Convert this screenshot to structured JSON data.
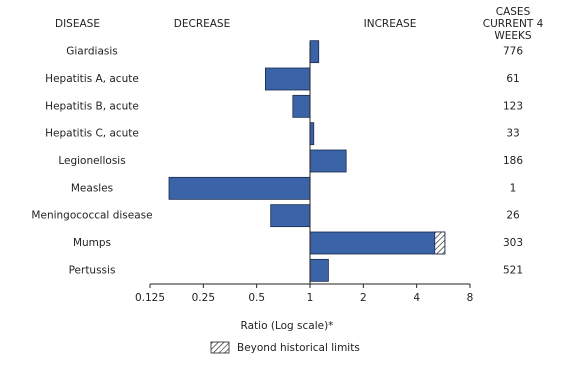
{
  "chart_data": {
    "type": "bar",
    "orientation": "horizontal",
    "headers": {
      "disease": "DISEASE",
      "decrease": "DECREASE",
      "increase": "INCREASE",
      "cases": "CASES CURRENT 4 WEEKS"
    },
    "categories": [
      "Giardiasis",
      "Hepatitis A, acute",
      "Hepatitis B, acute",
      "Hepatitis C, acute",
      "Legionellosis",
      "Measles",
      "Meningococcal disease",
      "Mumps",
      "Pertussis"
    ],
    "values": [
      1.12,
      0.56,
      0.8,
      1.05,
      1.6,
      0.16,
      0.6,
      5.77,
      1.27
    ],
    "historical_limits": [
      null,
      null,
      null,
      null,
      null,
      null,
      null,
      5.06,
      null
    ],
    "cases": [
      776,
      61,
      123,
      33,
      186,
      1,
      26,
      303,
      521
    ],
    "color": "#3b64a8",
    "log_scale": true,
    "xlim": [
      0.125,
      8
    ],
    "xticks": [
      0.125,
      0.25,
      0.5,
      1,
      2,
      4,
      8
    ],
    "xlabel": "Ratio (Log scale)*",
    "legend": "Beyond historical limits"
  }
}
